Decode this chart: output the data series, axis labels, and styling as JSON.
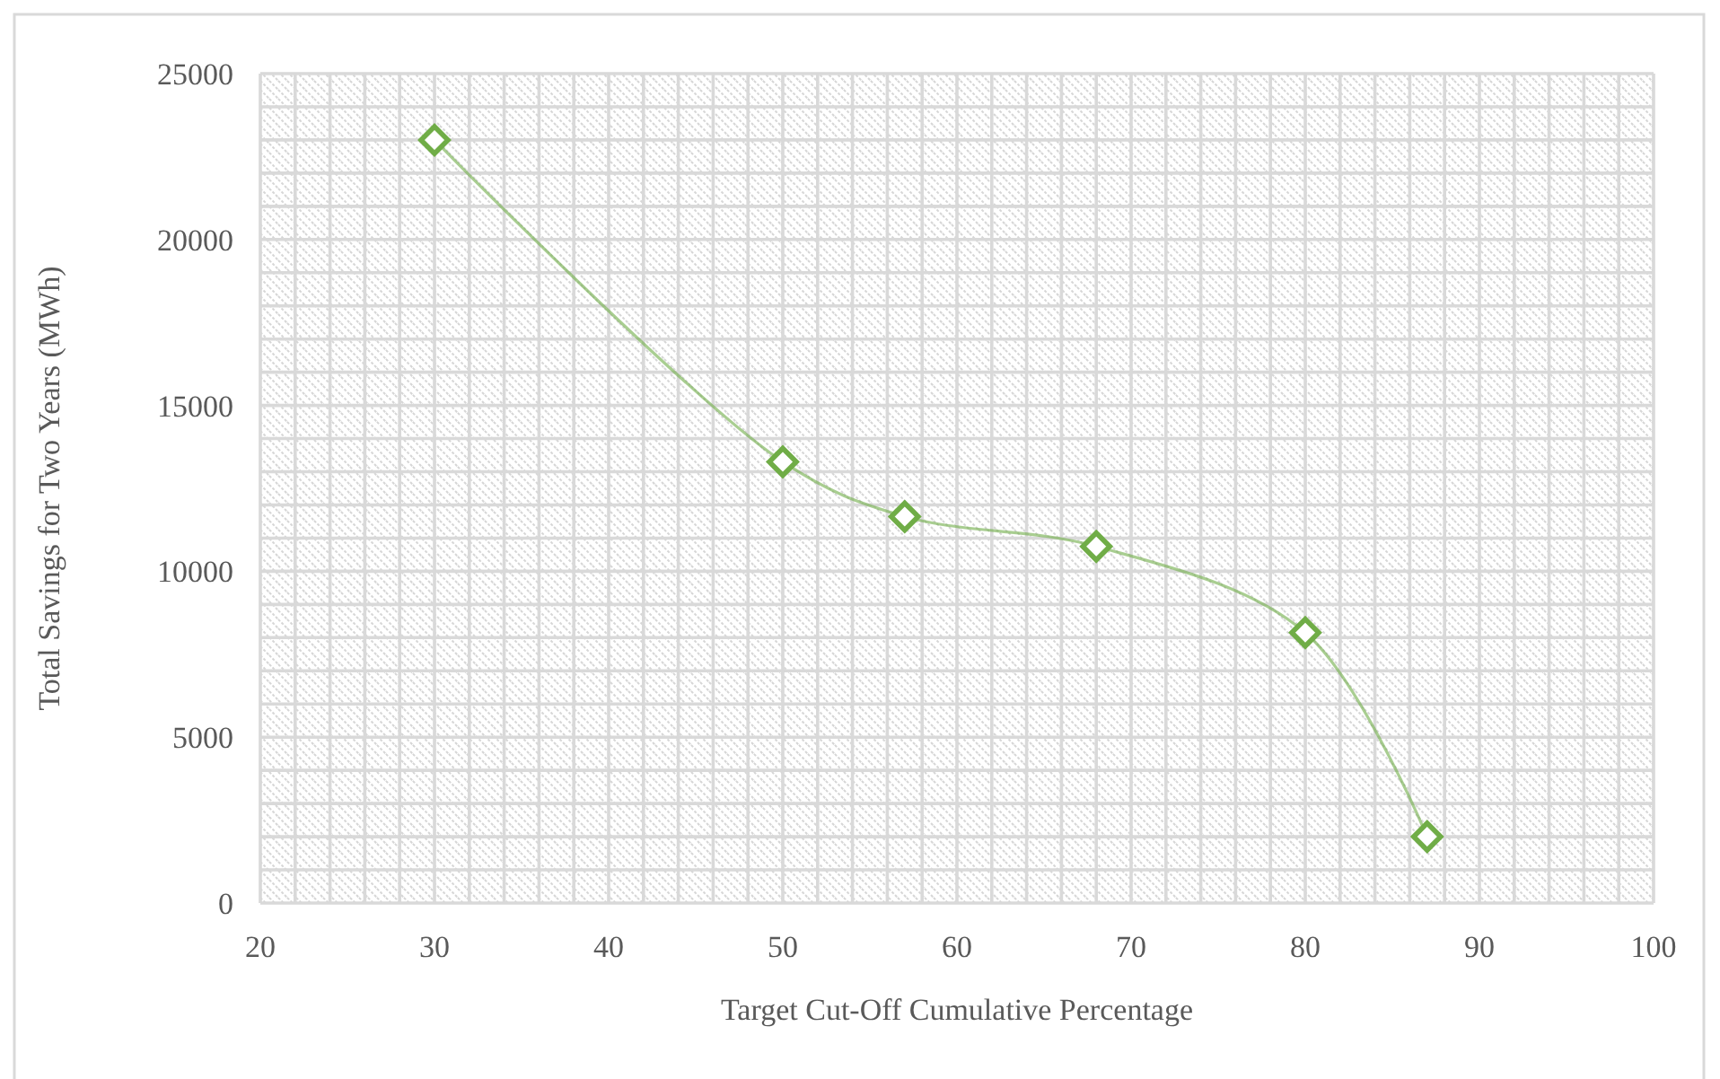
{
  "chart_data": {
    "type": "line",
    "xlabel": "Target Cut-Off Cumulative Percentage",
    "ylabel": "Total Savings for Two Years (MWh)",
    "x": [
      30,
      50,
      57,
      68,
      80,
      87
    ],
    "series": [
      {
        "color": "#70ad47",
        "values": [
          23000,
          13300,
          11650,
          10750,
          8150,
          2000
        ]
      }
    ],
    "xlim": [
      20,
      100
    ],
    "ylim": [
      0,
      25000
    ],
    "xticks": [
      20,
      {
        "value": 22,
        "label": null
      },
      {
        "value": 24,
        "label": null
      },
      {
        "value": 26,
        "label": null
      },
      {
        "value": 28,
        "label": null
      },
      30,
      {
        "value": 32,
        "label": null
      },
      {
        "value": 34,
        "label": null
      },
      {
        "value": 36,
        "label": null
      },
      {
        "value": 38,
        "label": null
      },
      40,
      {
        "value": 42,
        "label": null
      },
      {
        "value": 44,
        "label": null
      },
      {
        "value": 46,
        "label": null
      },
      {
        "value": 48,
        "label": null
      },
      50,
      {
        "value": 52,
        "label": null
      },
      {
        "value": 54,
        "label": null
      },
      {
        "value": 56,
        "label": null
      },
      {
        "value": 58,
        "label": null
      },
      60,
      {
        "value": 62,
        "label": null
      },
      {
        "value": 64,
        "label": null
      },
      {
        "value": 66,
        "label": null
      },
      {
        "value": 68,
        "label": null
      },
      70,
      {
        "value": 72,
        "label": null
      },
      {
        "value": 74,
        "label": null
      },
      {
        "value": 76,
        "label": null
      },
      {
        "value": 78,
        "label": null
      },
      80,
      {
        "value": 82,
        "label": null
      },
      {
        "value": 84,
        "label": null
      },
      {
        "value": 86,
        "label": null
      },
      {
        "value": 88,
        "label": null
      },
      90,
      {
        "value": 92,
        "label": null
      },
      {
        "value": 94,
        "label": null
      },
      {
        "value": 96,
        "label": null
      },
      {
        "value": 98,
        "label": null
      },
      100
    ],
    "yticks": [
      0,
      {
        "value": 1000,
        "label": null
      },
      {
        "value": 2000,
        "label": null
      },
      {
        "value": 3000,
        "label": null
      },
      {
        "value": 4000,
        "label": null
      },
      5000,
      {
        "value": 6000,
        "label": null
      },
      {
        "value": 7000,
        "label": null
      },
      {
        "value": 8000,
        "label": null
      },
      {
        "value": 9000,
        "label": null
      },
      10000,
      {
        "value": 11000,
        "label": null
      },
      {
        "value": 12000,
        "label": null
      },
      {
        "value": 13000,
        "label": null
      },
      {
        "value": 14000,
        "label": null
      },
      15000,
      {
        "value": 16000,
        "label": null
      },
      {
        "value": 17000,
        "label": null
      },
      {
        "value": 18000,
        "label": null
      },
      {
        "value": 19000,
        "label": null
      },
      20000,
      {
        "value": 21000,
        "label": null
      },
      {
        "value": 22000,
        "label": null
      },
      {
        "value": 23000,
        "label": null
      },
      {
        "value": 24000,
        "label": null
      },
      25000
    ],
    "grid": true,
    "marker": "diamond",
    "line_style": "solid"
  }
}
